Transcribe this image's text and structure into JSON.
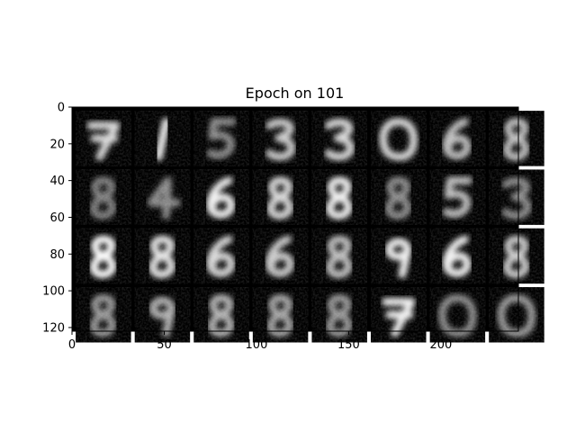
{
  "chart_data": {
    "type": "heatmap",
    "title": "Epoch on 101",
    "xlabel": "",
    "ylabel": "",
    "colormap": "gray",
    "image_size": [
      242,
      122
    ],
    "grid": {
      "rows": 4,
      "cols": 8,
      "cell_size": 30,
      "padding": 2
    },
    "xlim": [
      0,
      242
    ],
    "ylim": [
      122,
      0
    ],
    "x_ticks": [
      0,
      50,
      100,
      150,
      200
    ],
    "y_ticks": [
      0,
      20,
      40,
      60,
      80,
      100,
      120
    ],
    "x_tick_labels": [
      "0",
      "50",
      "100",
      "150",
      "200"
    ],
    "y_tick_labels": [
      "0",
      "20",
      "40",
      "60",
      "80",
      "100",
      "120"
    ],
    "tiles_digit_shape": [
      [
        "7",
        "1",
        "5",
        "3",
        "3",
        "0",
        "6",
        "8"
      ],
      [
        "8",
        "4",
        "6",
        "8",
        "8",
        "8",
        "5",
        "3"
      ],
      [
        "8",
        "8",
        "6",
        "6",
        "8",
        "9",
        "6",
        "8"
      ],
      [
        "8",
        "9",
        "8",
        "8",
        "8",
        "7",
        "0",
        "0"
      ]
    ],
    "tiles_brightness": [
      [
        0.85,
        0.95,
        0.55,
        0.8,
        0.85,
        0.85,
        0.75,
        0.75
      ],
      [
        0.5,
        0.55,
        0.95,
        0.85,
        0.95,
        0.55,
        0.75,
        0.55
      ],
      [
        1.0,
        0.9,
        0.85,
        0.8,
        0.75,
        0.95,
        0.95,
        0.8
      ],
      [
        0.6,
        0.7,
        0.7,
        0.65,
        0.6,
        0.95,
        0.55,
        0.6
      ]
    ]
  }
}
